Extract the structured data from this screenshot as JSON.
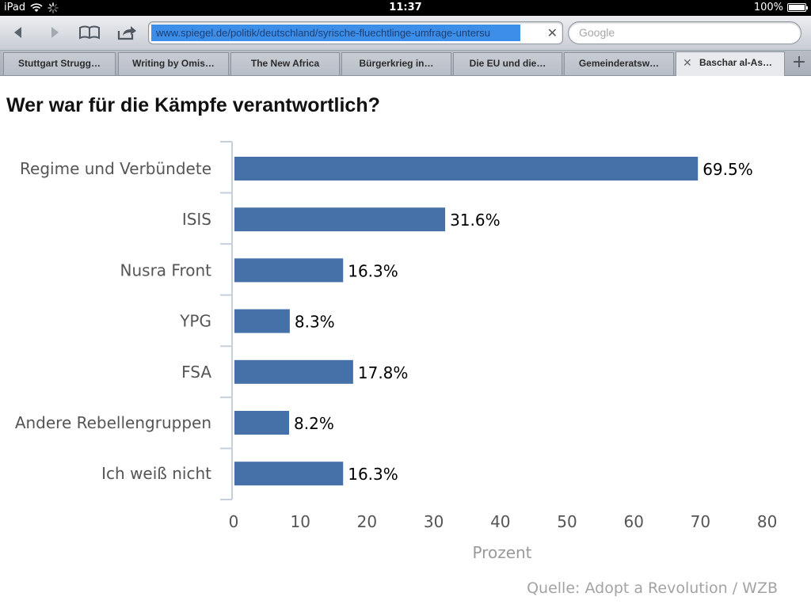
{
  "status": {
    "device": "iPad",
    "time": "11:37",
    "battery": "100%"
  },
  "browser": {
    "url": "www.spiegel.de/politik/deutschland/syrische-fluechtlinge-umfrage-untersu",
    "search_placeholder": "Google",
    "tabs": [
      {
        "label": "Stuttgart Strugg…"
      },
      {
        "label": "Writing by Omis…"
      },
      {
        "label": "The New Africa"
      },
      {
        "label": "Bürgerkrieg in…"
      },
      {
        "label": "Die EU und die…"
      },
      {
        "label": "Gemeinderatsw…"
      },
      {
        "label": "Baschar al-As…"
      }
    ]
  },
  "chart_data": {
    "type": "bar",
    "orientation": "horizontal",
    "title": "Wer war für die Kämpfe verantwortlich?",
    "categories": [
      "Regime und Verbündete",
      "ISIS",
      "Nusra Front",
      "YPG",
      "FSA",
      "Andere Rebellengruppen",
      "Ich weiß nicht"
    ],
    "values": [
      69.5,
      31.6,
      16.3,
      8.3,
      17.8,
      8.2,
      16.3
    ],
    "value_labels": [
      "69.5%",
      "31.6%",
      "16.3%",
      "8.3%",
      "17.8%",
      "8.2%",
      "16.3%"
    ],
    "xlabel": "Prozent",
    "xlim": [
      0,
      80
    ],
    "xticks": [
      0,
      10,
      20,
      30,
      40,
      50,
      60,
      70,
      80
    ],
    "bar_color": "#4671a8",
    "grid": false,
    "source": "Quelle: Adopt a Revolution / WZB"
  }
}
